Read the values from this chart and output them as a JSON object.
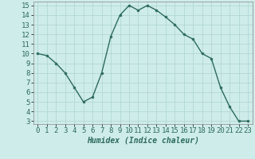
{
  "x": [
    0,
    1,
    2,
    3,
    4,
    5,
    6,
    7,
    8,
    9,
    10,
    11,
    12,
    13,
    14,
    15,
    16,
    17,
    18,
    19,
    20,
    21,
    22,
    23
  ],
  "y": [
    10,
    9.8,
    9,
    8,
    6.5,
    5,
    5.5,
    8,
    11.8,
    14,
    15,
    14.5,
    15,
    14.5,
    13.8,
    13,
    12,
    11.5,
    10,
    9.5,
    6.5,
    4.5,
    3,
    3
  ],
  "line_color": "#2d6b5e",
  "marker": "o",
  "markersize": 2.0,
  "linewidth": 1.0,
  "xlabel": "Humidex (Indice chaleur)",
  "xlabel_fontsize": 7,
  "xlim": [
    -0.5,
    23.5
  ],
  "ylim": [
    2.7,
    15.4
  ],
  "yticks": [
    3,
    4,
    5,
    6,
    7,
    8,
    9,
    10,
    11,
    12,
    13,
    14,
    15
  ],
  "xticks": [
    0,
    1,
    2,
    3,
    4,
    5,
    6,
    7,
    8,
    9,
    10,
    11,
    12,
    13,
    14,
    15,
    16,
    17,
    18,
    19,
    20,
    21,
    22,
    23
  ],
  "bg_color": "#ceecea",
  "grid_color": "#aed4d0",
  "tick_fontsize": 6.5
}
